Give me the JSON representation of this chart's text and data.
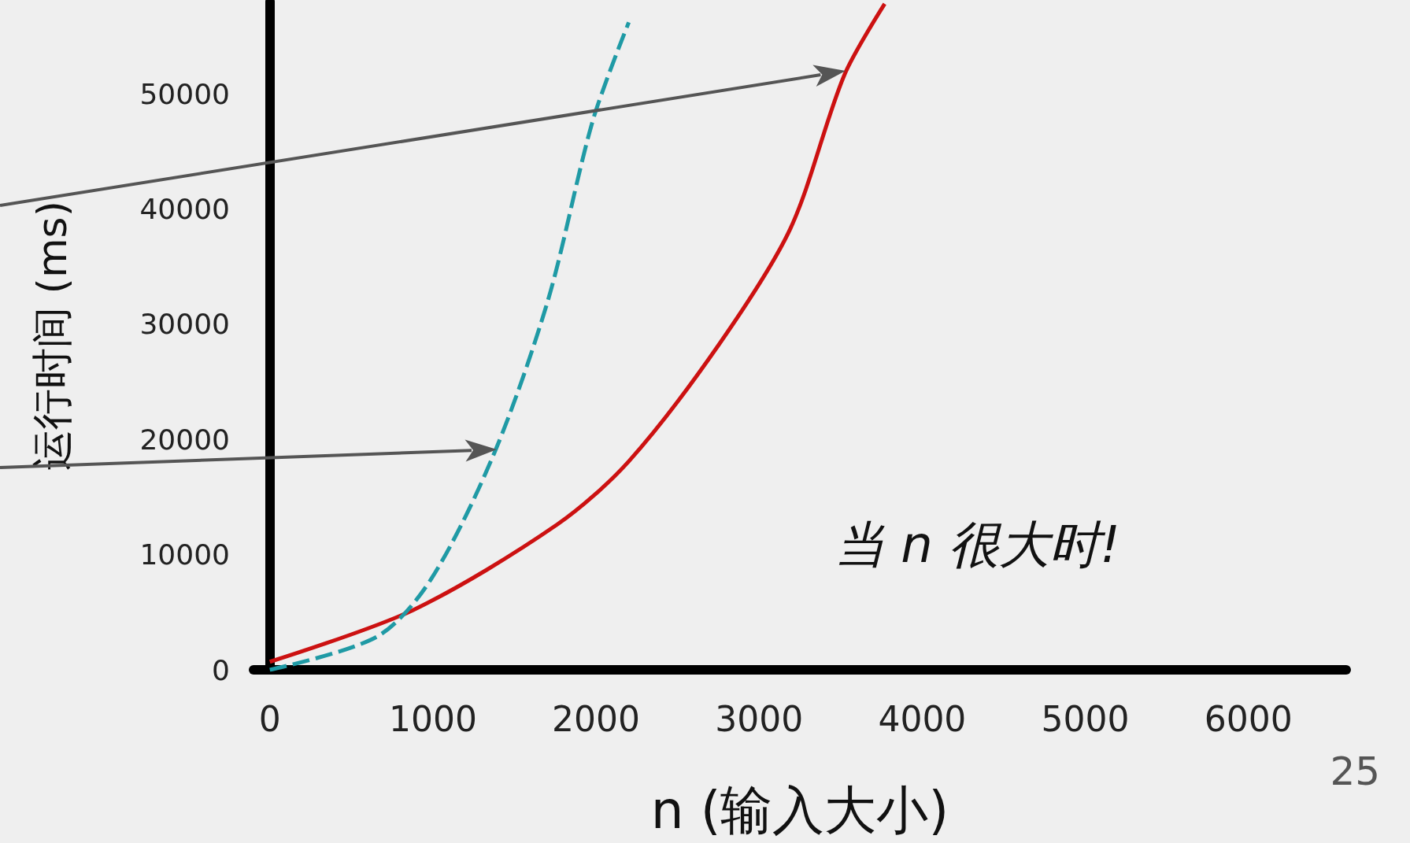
{
  "chart_data": {
    "type": "line",
    "xlabel": "n (输入大小)",
    "ylabel": "运行时间 (ms)",
    "xlim": [
      -100,
      6600
    ],
    "ylim": [
      0,
      58000
    ],
    "xticks": [
      0,
      1000,
      2000,
      3000,
      4000,
      5000,
      6000
    ],
    "yticks": [
      0,
      10000,
      20000,
      30000,
      40000,
      50000
    ],
    "grid": false,
    "marker": "none",
    "series": [
      {
        "color": "#cc1111",
        "line_style": "solid",
        "x": [
          0,
          880,
          1761,
          2201,
          2752,
          3192,
          3522,
          3770
        ],
        "values": [
          700,
          5200,
          12600,
          18100,
          28200,
          38300,
          51600,
          57800
        ]
      },
      {
        "color": "#1f9aa5",
        "line_style": "dashed",
        "x": [
          0,
          660,
          990,
          1376,
          1706,
          1981,
          2201
        ],
        "values": [
          0,
          2900,
          7900,
          18800,
          32100,
          47700,
          56200
        ]
      }
    ],
    "annotations": [
      "当 n 很大时!",
      "25"
    ]
  }
}
